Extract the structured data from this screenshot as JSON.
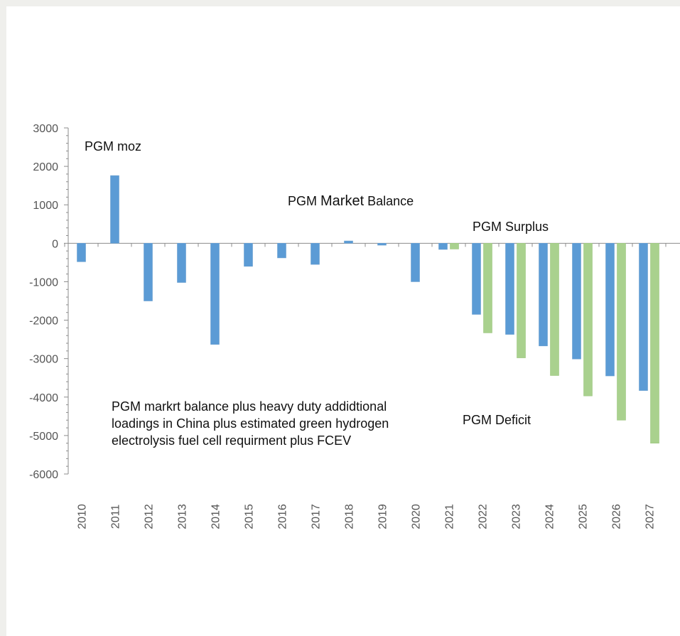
{
  "chart_data": {
    "type": "bar",
    "categories": [
      "2010",
      "2011",
      "2012",
      "2013",
      "2014",
      "2015",
      "2016",
      "2017",
      "2018",
      "2019",
      "2020",
      "2021",
      "2022",
      "2023",
      "2024",
      "2025",
      "2026",
      "2027"
    ],
    "series": [
      {
        "values": [
          -480,
          1760,
          -1500,
          -1020,
          -2630,
          -600,
          -380,
          -550,
          60,
          -50,
          -1000,
          -160,
          -1850,
          -2370,
          -2670,
          -3010,
          -3450,
          -3830
        ],
        "color": "#5b9bd5"
      },
      {
        "values": [
          null,
          null,
          null,
          null,
          null,
          null,
          null,
          null,
          null,
          null,
          null,
          -150,
          -2330,
          -2980,
          -3440,
          -3970,
          -4600,
          -5200
        ],
        "color": "#a9d18e"
      }
    ],
    "ylim": [
      -6000,
      3000
    ],
    "yticks": [
      3000,
      2000,
      1000,
      0,
      -1000,
      -2000,
      -3000,
      -4000,
      -5000,
      -6000
    ],
    "grid": false,
    "annotations": {
      "unit": "PGM moz",
      "title_prefix": "PGM ",
      "title_emph": "Market",
      "title_suffix": " Balance",
      "surplus": "PGM Surplus",
      "deficit": "PGM Deficit",
      "note_lines": [
        "PGM markrt balance  plus heavy duty addidtional",
        "loadings in China plus estimated  green hydrogen",
        "electrolysis fuel cell requirment plus FCEV"
      ]
    }
  }
}
